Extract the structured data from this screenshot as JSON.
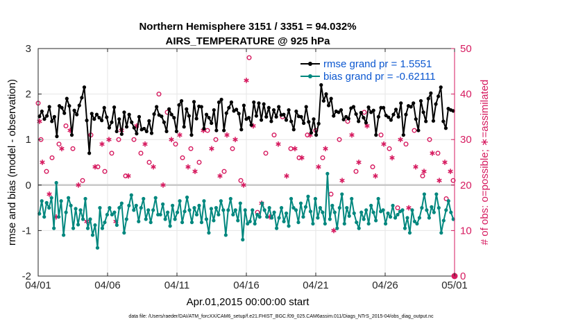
{
  "chart_data": {
    "type": "line",
    "title_line1": "Northern Hemisphere 3151 / 3351 = 94.032%",
    "title_line2": "AIRS_TEMPERATURE @ 925 hPa",
    "xlabel": "Apr.01,2015 00:00:00 start",
    "ylabel_left": "rmse and bias (model - observation)",
    "ylabel_right": "# of obs: o=possible; ∗=assimilated",
    "footnote": "data file: /Users/raeder/DAI/ATM_forcXX/CAM6_setup/f.e21.FHIST_BGC.f09_025.CAM6assim.011/Diags_NTrS_2015-04/obs_diag_output.nc",
    "xlim": [
      0,
      30
    ],
    "ylim_left": [
      -2,
      3
    ],
    "ylim_right": [
      0,
      50
    ],
    "x_ticks": [
      0,
      5,
      10,
      15,
      20,
      25,
      30
    ],
    "x_tick_labels": [
      "04/01",
      "04/06",
      "04/11",
      "04/16",
      "04/21",
      "04/26",
      "05/01"
    ],
    "y_ticks_left": [
      -2,
      -1,
      0,
      1,
      2,
      3
    ],
    "y_tick_labels_left": [
      "-2",
      "-1",
      "0",
      "1",
      "2",
      "3"
    ],
    "y_ticks_right": [
      0,
      10,
      20,
      30,
      40,
      50
    ],
    "y_tick_labels_right": [
      "0",
      "10",
      "20",
      "30",
      "40",
      "50"
    ],
    "colors": {
      "rmse": "#000000",
      "bias": "#00877e",
      "obs": "#d61a5f",
      "zero_line": "#c8c8c8",
      "grid": "#e6e6e6",
      "legend_text": "#0b57d0"
    },
    "legend": {
      "position": "top-right",
      "rmse_label": "rmse grand pr = 1.5551",
      "bias_label": "bias grand pr = -0.62111"
    },
    "series": [
      {
        "name": "rmse",
        "axis": "left",
        "values": [
          1.51,
          1.62,
          1.45,
          1.52,
          1.72,
          1.4,
          1.5,
          1.07,
          1.74,
          1.7,
          1.58,
          1.9,
          1.74,
          1.1,
          1.64,
          1.55,
          1.75,
          1.92,
          2.15,
          1.42,
          0.7,
          1.57,
          1.45,
          1.55,
          1.48,
          1.42,
          1.7,
          1.49,
          1.26,
          1.38,
          1.71,
          1.18,
          1.45,
          1.12,
          1.6,
          1.28,
          1.55,
          1.38,
          1.26,
          1.13,
          1.5,
          1.22,
          1.24,
          1.18,
          1.41,
          1.14,
          1.56,
          1.72,
          1.54,
          1.51,
          1.38,
          1.18,
          1.67,
          1.55,
          1.48,
          1.18,
          1.76,
          1.85,
          1.28,
          1.67,
          1.52,
          1.1,
          1.83,
          1.46,
          1.73,
          1.72,
          1.24,
          1.55,
          1.48,
          1.36,
          1.65,
          1.2,
          1.82,
          1.88,
          1.2,
          1.58,
          1.7,
          1.82,
          1.63,
          1.66,
          1.57,
          1.22,
          1.75,
          1.45,
          1.48,
          1.32,
          1.82,
          1.52,
          1.8,
          1.43,
          1.78,
          1.5,
          1.7,
          1.4,
          1.65,
          1.5,
          1.72,
          1.54,
          1.55,
          1.43,
          1.65,
          1.4,
          1.22,
          1.62,
          1.51,
          1.5,
          1.36,
          1.72,
          1.39,
          1.15,
          1.45,
          1.1,
          1.35,
          2.2,
          1.85,
          2.0,
          1.75,
          1.9,
          1.52,
          1.62,
          1.6,
          1.65,
          1.44,
          1.5,
          1.46,
          1.69,
          1.72,
          1.56,
          1.4,
          1.59,
          1.48,
          1.37,
          1.71,
          1.6,
          1.64,
          1.1,
          1.5,
          1.7,
          1.7,
          1.53,
          1.49,
          1.43,
          1.55,
          1.66,
          1.5,
          1.8,
          1.1,
          1.55,
          1.74,
          1.72,
          1.8,
          1.45,
          1.2,
          1.85,
          1.6,
          1.4,
          1.9,
          2.02,
          1.41,
          1.78,
          1.95,
          2.15,
          1.4,
          1.25,
          1.68,
          1.65,
          1.63
        ]
      },
      {
        "name": "bias",
        "axis": "left",
        "values": [
          -0.63,
          -0.35,
          -0.7,
          -0.39,
          -0.5,
          -0.28,
          -0.95,
          0.05,
          -0.7,
          -0.35,
          -1.1,
          -0.6,
          -0.28,
          -0.45,
          -0.95,
          -0.52,
          -0.87,
          -0.55,
          -0.75,
          -0.3,
          -0.95,
          -0.75,
          -1.1,
          -0.88,
          -1.38,
          -0.5,
          -0.95,
          -0.82,
          -0.65,
          -0.5,
          -0.65,
          -0.6,
          -0.88,
          -0.5,
          -0.4,
          -1.05,
          -0.75,
          -0.45,
          -0.22,
          -0.55,
          -0.45,
          -0.8,
          -0.5,
          -0.3,
          -0.75,
          -0.55,
          -0.82,
          -0.55,
          -0.28,
          -0.65,
          -0.65,
          -0.42,
          -0.75,
          -0.6,
          -0.9,
          -0.45,
          -0.75,
          -0.6,
          -0.35,
          -0.82,
          -0.58,
          -0.27,
          -0.55,
          -0.82,
          -0.5,
          -0.65,
          -0.45,
          -0.82,
          -0.35,
          -0.75,
          -1.05,
          -0.52,
          -0.78,
          -0.5,
          -0.65,
          -0.35,
          -0.55,
          -1.1,
          -0.55,
          -0.3,
          -0.65,
          -0.55,
          -0.78,
          -0.4,
          -1.2,
          -0.55,
          -0.85,
          -0.8,
          -0.55,
          -0.85,
          -0.65,
          -0.7,
          -0.4,
          -0.55,
          -0.7,
          -0.5,
          -0.72,
          -0.6,
          -0.95,
          -0.72,
          -0.5,
          -0.8,
          -0.62,
          -0.9,
          -0.3,
          -0.5,
          -0.55,
          -0.82,
          -0.4,
          -0.7,
          -0.48,
          -0.25,
          -0.58,
          -0.85,
          -0.3,
          -0.72,
          -0.5,
          -0.6,
          -0.85,
          0.25,
          -0.75,
          -0.45,
          -0.6,
          -0.95,
          -0.5,
          -0.2,
          -0.85,
          -0.5,
          -0.68,
          -0.3,
          -0.62,
          -0.82,
          -0.95,
          -0.6,
          -0.75,
          -0.55,
          -0.85,
          -0.45,
          -0.6,
          -0.78,
          -0.3,
          -0.58,
          -0.55,
          -0.85,
          -0.62,
          -0.7,
          -0.45,
          -0.72,
          -0.65,
          -0.58,
          -0.55,
          -0.95,
          -0.72,
          -1.05,
          -0.55,
          -0.8,
          -0.85,
          -0.72,
          -0.5,
          -0.2,
          -0.55,
          -0.72,
          -0.48,
          -0.6,
          -0.2,
          -0.5,
          -1.05,
          -0.78,
          -0.55,
          -0.35,
          -0.6,
          -0.75
        ]
      }
    ],
    "obs_assimilated": {
      "x": [
        0.1,
        0.3,
        0.8,
        1.3,
        1.7,
        2.3,
        2.9,
        3.5,
        4.1,
        4.6,
        5.1,
        5.6,
        6.0,
        6.5,
        7.1,
        7.7,
        8.3,
        9.0,
        9.6,
        10.2,
        10.8,
        11.3,
        11.9,
        12.5,
        13.1,
        13.6,
        14.2,
        14.8,
        15.0,
        15.5,
        16.1,
        16.7,
        17.3,
        17.9,
        18.5,
        19.0,
        19.6,
        20.2,
        20.7,
        21.3,
        21.9,
        22.6,
        23.1,
        23.7,
        24.3,
        24.9,
        25.5,
        26.1,
        26.7,
        27.2,
        27.8,
        28.4,
        28.9,
        29.3,
        29.7
      ],
      "y": [
        34,
        25,
        18,
        13,
        28,
        32,
        20,
        12,
        24,
        29,
        30,
        12,
        32,
        22,
        33,
        29,
        24,
        20,
        30,
        31,
        24,
        23,
        32,
        28,
        22,
        31,
        30,
        20,
        43,
        33,
        16,
        13,
        29,
        22,
        28,
        26,
        31,
        24,
        28,
        10,
        21,
        31,
        25,
        33,
        22,
        29,
        26,
        30,
        15,
        24,
        23,
        27,
        21,
        25,
        23
      ]
    },
    "obs_possible": {
      "x": [
        0.0,
        0.2,
        0.6,
        1.0,
        1.5,
        2.0,
        2.5,
        3.2,
        3.8,
        4.3,
        4.8,
        5.3,
        5.8,
        6.3,
        6.9,
        7.4,
        8.0,
        8.7,
        9.3,
        9.9,
        10.4,
        11.0,
        11.6,
        12.2,
        12.8,
        13.4,
        14.0,
        14.6,
        15.2,
        15.8,
        16.4,
        17.0,
        17.6,
        18.2,
        18.8,
        19.4,
        20.0,
        20.5,
        21.1,
        21.7,
        22.3,
        22.9,
        23.5,
        24.1,
        24.7,
        25.3,
        25.9,
        26.5,
        27.1,
        27.7,
        28.2,
        28.8,
        29.4,
        29.9
      ],
      "y": [
        38,
        30,
        23,
        26,
        29,
        33,
        28,
        21,
        31,
        24,
        23,
        27,
        30,
        22,
        30,
        27,
        25,
        40,
        36,
        29,
        26,
        28,
        25,
        32,
        30,
        23,
        28,
        21,
        48,
        14,
        27,
        31,
        35,
        28,
        26,
        31,
        32,
        26,
        18,
        30,
        34,
        23,
        36,
        24,
        31,
        28,
        15,
        29,
        32,
        22,
        30,
        27,
        17,
        21
      ]
    }
  }
}
